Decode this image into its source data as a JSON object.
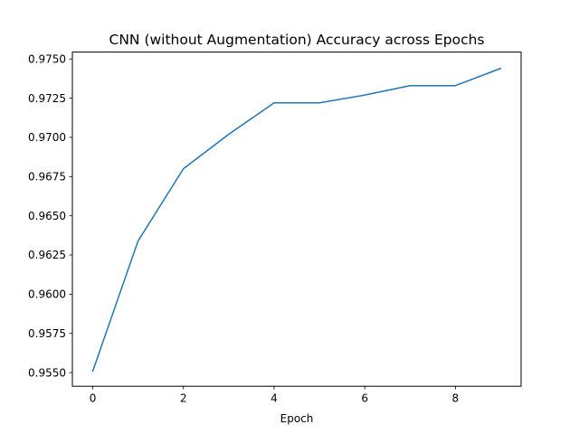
{
  "chart_data": {
    "type": "line",
    "title": "CNN (without Augmentation) Accuracy across Epochs",
    "xlabel": "Epoch",
    "ylabel": "",
    "xlim": [
      -0.45,
      9.45
    ],
    "ylim": [
      0.95413,
      0.97544
    ],
    "xticks": [
      0,
      2,
      4,
      6,
      8
    ],
    "xtick_labels": [
      "0",
      "2",
      "4",
      "6",
      "8"
    ],
    "yticks": [
      0.955,
      0.9575,
      0.96,
      0.9625,
      0.965,
      0.9675,
      0.97,
      0.9725,
      0.975
    ],
    "ytick_labels": [
      "0.9550",
      "0.9575",
      "0.9600",
      "0.9625",
      "0.9650",
      "0.9675",
      "0.9700",
      "0.9725",
      "0.9750"
    ],
    "grid": false,
    "series": [
      {
        "color": "#1f77b4",
        "x": [
          0,
          1,
          2,
          3,
          4,
          5,
          6,
          7,
          8,
          9
        ],
        "values": [
          0.9551,
          0.9634,
          0.968,
          0.9702,
          0.9722,
          0.9722,
          0.9727,
          0.9733,
          0.9733,
          0.9744
        ]
      }
    ]
  }
}
